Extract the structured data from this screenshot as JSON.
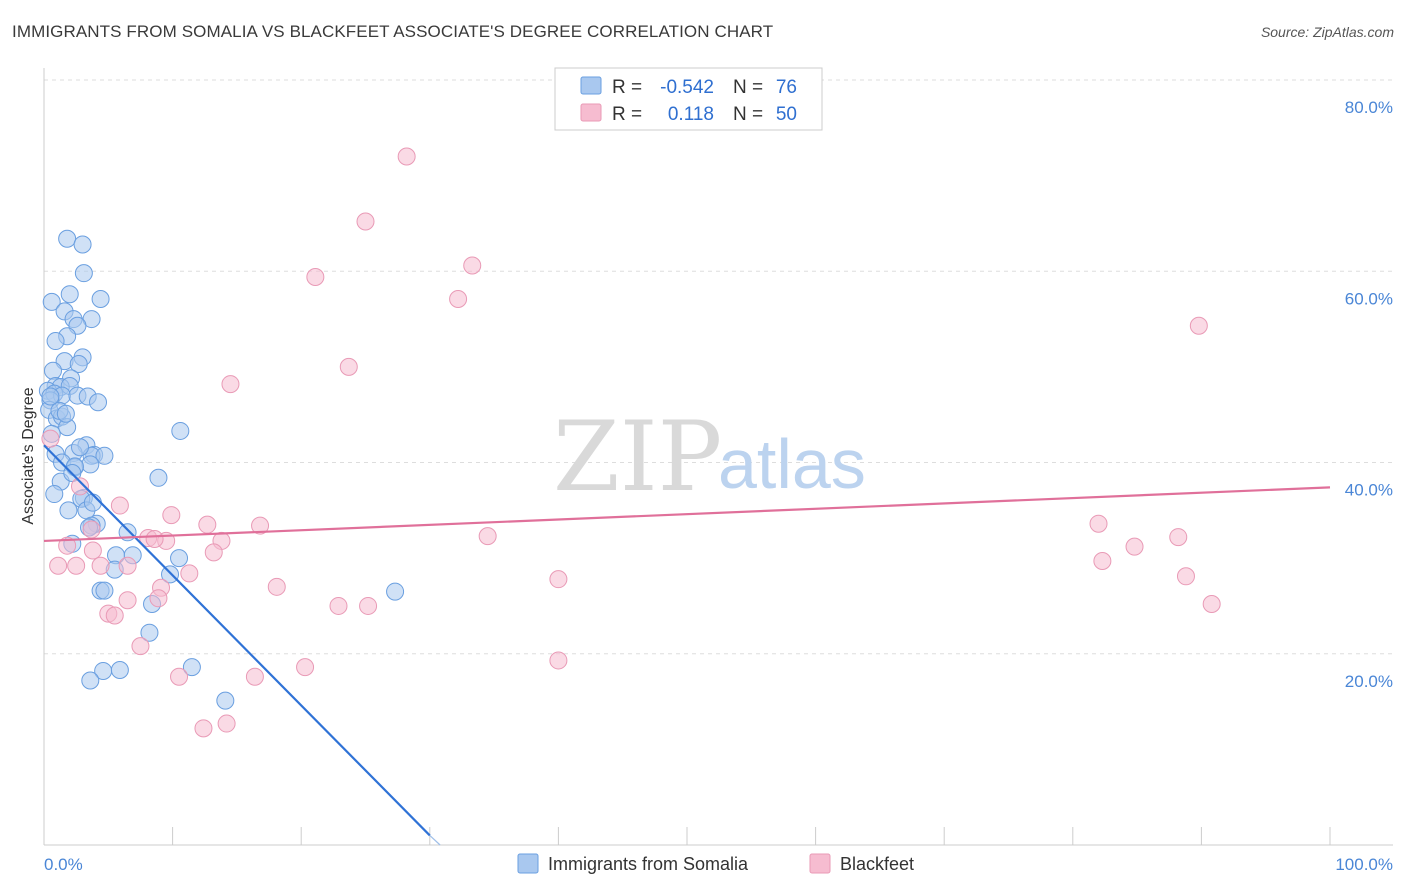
{
  "title": "IMMIGRANTS FROM SOMALIA VS BLACKFEET ASSOCIATE'S DEGREE CORRELATION CHART",
  "source": "Source: ZipAtlas.com",
  "watermark": {
    "zip": "ZIP",
    "atlas": "atlas"
  },
  "colors": {
    "blue_fill": "#a9c8ef",
    "blue_stroke": "#6a9fe0",
    "blue_line": "#2f72d6",
    "pink_fill": "#f6bcd0",
    "pink_stroke": "#e99ab6",
    "pink_line": "#e0709a",
    "grid": "#dddddd",
    "tick_text": "#4a86d6"
  },
  "legend": {
    "rows": [
      {
        "r_label": "R =",
        "r_value": "-0.542",
        "n_label": "N =",
        "n_value": "76"
      },
      {
        "r_label": "R =",
        "r_value": "0.118",
        "n_label": "N =",
        "n_value": "50"
      }
    ]
  },
  "chart_data": {
    "type": "scatter",
    "title": "IMMIGRANTS FROM SOMALIA VS BLACKFEET ASSOCIATE'S DEGREE CORRELATION CHART",
    "xlabel": "",
    "ylabel": "Associate's Degree",
    "xlim": [
      0,
      100
    ],
    "ylim": [
      0,
      80
    ],
    "x_tick_labels": [
      "0.0%",
      "100.0%"
    ],
    "y_ticks": [
      20,
      40,
      60,
      80
    ],
    "y_tick_labels": [
      "20.0%",
      "40.0%",
      "60.0%",
      "80.0%"
    ],
    "grid": true,
    "series": [
      {
        "name": "Immigrants from Somalia",
        "color": "#a9c8ef",
        "trend": {
          "x": [
            0,
            30
          ],
          "y": [
            41.8,
            1.0
          ]
        },
        "points": [
          [
            1.8,
            63.4
          ],
          [
            3.0,
            62.8
          ],
          [
            3.1,
            59.8
          ],
          [
            4.4,
            57.1
          ],
          [
            2.0,
            57.6
          ],
          [
            0.6,
            56.8
          ],
          [
            1.6,
            55.8
          ],
          [
            2.3,
            55.0
          ],
          [
            3.7,
            55.0
          ],
          [
            2.6,
            54.3
          ],
          [
            1.8,
            53.2
          ],
          [
            0.9,
            52.7
          ],
          [
            3.0,
            51.0
          ],
          [
            1.6,
            50.6
          ],
          [
            2.7,
            50.3
          ],
          [
            0.7,
            49.6
          ],
          [
            2.1,
            48.8
          ],
          [
            0.9,
            48.0
          ],
          [
            1.3,
            47.9
          ],
          [
            2.0,
            48.0
          ],
          [
            0.3,
            47.5
          ],
          [
            0.8,
            47.2
          ],
          [
            1.4,
            47.0
          ],
          [
            2.6,
            47.0
          ],
          [
            3.4,
            46.9
          ],
          [
            0.5,
            46.5
          ],
          [
            4.2,
            46.3
          ],
          [
            0.4,
            45.5
          ],
          [
            1.0,
            44.6
          ],
          [
            1.4,
            44.8
          ],
          [
            1.8,
            43.7
          ],
          [
            0.6,
            43.0
          ],
          [
            10.6,
            43.3
          ],
          [
            3.3,
            41.8
          ],
          [
            2.3,
            41.0
          ],
          [
            0.9,
            40.9
          ],
          [
            3.9,
            40.8
          ],
          [
            3.7,
            40.7
          ],
          [
            4.7,
            40.7
          ],
          [
            1.4,
            40.0
          ],
          [
            3.6,
            39.8
          ],
          [
            2.4,
            39.5
          ],
          [
            8.9,
            38.4
          ],
          [
            1.3,
            38.0
          ],
          [
            0.8,
            36.7
          ],
          [
            3.1,
            36.3
          ],
          [
            2.9,
            36.2
          ],
          [
            1.9,
            35.0
          ],
          [
            3.3,
            35.0
          ],
          [
            4.1,
            33.6
          ],
          [
            3.7,
            33.4
          ],
          [
            3.5,
            33.2
          ],
          [
            6.5,
            32.7
          ],
          [
            2.2,
            31.5
          ],
          [
            5.6,
            30.3
          ],
          [
            6.9,
            30.3
          ],
          [
            10.5,
            30.0
          ],
          [
            5.5,
            28.8
          ],
          [
            9.8,
            28.3
          ],
          [
            27.3,
            26.5
          ],
          [
            4.4,
            26.6
          ],
          [
            4.7,
            26.6
          ],
          [
            8.4,
            25.2
          ],
          [
            8.2,
            22.2
          ],
          [
            11.5,
            18.6
          ],
          [
            4.6,
            18.2
          ],
          [
            5.9,
            18.3
          ],
          [
            3.6,
            17.2
          ],
          [
            14.1,
            15.1
          ],
          [
            1.2,
            45.4
          ],
          [
            2.4,
            39.6
          ],
          [
            0.5,
            46.9
          ],
          [
            1.7,
            45.1
          ],
          [
            2.8,
            41.6
          ],
          [
            2.2,
            38.9
          ],
          [
            3.8,
            35.8
          ]
        ]
      },
      {
        "name": "Blackfeet",
        "color": "#f6bcd0",
        "trend": {
          "x": [
            0,
            100
          ],
          "y": [
            31.8,
            37.4
          ]
        },
        "points": [
          [
            28.2,
            72.0
          ],
          [
            25.0,
            65.2
          ],
          [
            33.3,
            60.6
          ],
          [
            21.1,
            59.4
          ],
          [
            32.2,
            57.1
          ],
          [
            89.8,
            54.3
          ],
          [
            23.7,
            50.0
          ],
          [
            14.5,
            48.2
          ],
          [
            2.8,
            37.5
          ],
          [
            5.9,
            35.5
          ],
          [
            9.9,
            34.5
          ],
          [
            12.7,
            33.5
          ],
          [
            16.8,
            33.4
          ],
          [
            34.5,
            32.3
          ],
          [
            8.1,
            32.1
          ],
          [
            9.5,
            31.8
          ],
          [
            13.8,
            31.8
          ],
          [
            1.8,
            31.3
          ],
          [
            3.8,
            30.8
          ],
          [
            13.2,
            30.6
          ],
          [
            11.3,
            28.4
          ],
          [
            4.4,
            29.2
          ],
          [
            1.1,
            29.2
          ],
          [
            2.5,
            29.2
          ],
          [
            6.5,
            29.2
          ],
          [
            9.1,
            26.9
          ],
          [
            18.1,
            27.0
          ],
          [
            40.0,
            27.8
          ],
          [
            82.0,
            33.6
          ],
          [
            84.8,
            31.2
          ],
          [
            88.2,
            32.2
          ],
          [
            82.3,
            29.7
          ],
          [
            88.8,
            28.1
          ],
          [
            90.8,
            25.2
          ],
          [
            22.9,
            25.0
          ],
          [
            25.2,
            25.0
          ],
          [
            6.5,
            25.6
          ],
          [
            8.9,
            25.8
          ],
          [
            5.0,
            24.2
          ],
          [
            5.5,
            24.0
          ],
          [
            7.5,
            20.8
          ],
          [
            40.0,
            19.3
          ],
          [
            20.3,
            18.6
          ],
          [
            10.5,
            17.6
          ],
          [
            16.4,
            17.6
          ],
          [
            14.2,
            12.7
          ],
          [
            12.4,
            12.2
          ],
          [
            0.5,
            42.5
          ],
          [
            3.7,
            33.0
          ],
          [
            8.6,
            32.0
          ]
        ]
      }
    ]
  }
}
